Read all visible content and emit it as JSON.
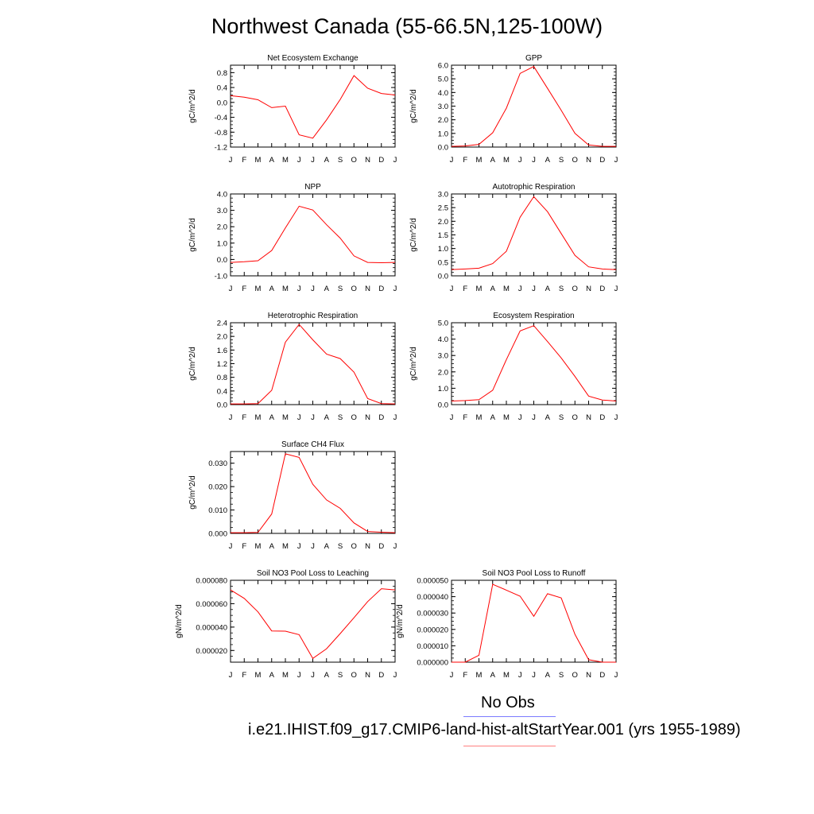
{
  "page": {
    "title": "Northwest Canada (55-66.5N,125-100W)"
  },
  "legend": {
    "obs_label": "No Obs",
    "obs_color": "#7b7bff",
    "model_label": "i.e21.IHIST.f09_g17.CMIP6-land-hist-altStartYear.001 (yrs 1955-1989)",
    "model_color": "#ff8080"
  },
  "colors": {
    "series": "#ff0000",
    "axis": "#000000"
  },
  "months": [
    "J",
    "F",
    "M",
    "A",
    "M",
    "J",
    "J",
    "A",
    "S",
    "O",
    "N",
    "D",
    "J"
  ],
  "chart_data": [
    {
      "type": "line",
      "title": "Net Ecosystem Exchange",
      "ylabel": "gC/m^2/d",
      "ylim": [
        -1.2,
        1.0
      ],
      "yticks": [
        "0.8",
        "0.4",
        "0.0",
        "-0.4",
        "-0.8",
        "-1.2"
      ],
      "ytick_values": [
        0.8,
        0.4,
        0.0,
        -0.4,
        -0.8,
        -1.2
      ],
      "values": [
        0.18,
        0.14,
        0.07,
        -0.14,
        -0.1,
        -0.87,
        -0.96,
        -0.47,
        0.08,
        0.72,
        0.38,
        0.24,
        0.2
      ]
    },
    {
      "type": "line",
      "title": "GPP",
      "ylabel": "gC/m^2/d",
      "ylim": [
        0.0,
        6.0
      ],
      "yticks": [
        "6.0",
        "5.0",
        "4.0",
        "3.0",
        "2.0",
        "1.0",
        "0.0"
      ],
      "ytick_values": [
        6,
        5,
        4,
        3,
        2,
        1,
        0
      ],
      "values": [
        0.05,
        0.08,
        0.2,
        1.05,
        2.85,
        5.4,
        5.9,
        4.3,
        2.7,
        1.0,
        0.15,
        0.05,
        0.05
      ]
    },
    {
      "type": "line",
      "title": "NPP",
      "ylabel": "gC/m^2/d",
      "ylim": [
        -1.0,
        4.0
      ],
      "yticks": [
        "4.0",
        "3.0",
        "2.0",
        "1.0",
        "0.0",
        "-1.0"
      ],
      "ytick_values": [
        4,
        3,
        2,
        1,
        0,
        -1
      ],
      "values": [
        -0.18,
        -0.14,
        -0.08,
        0.55,
        1.92,
        3.25,
        3.02,
        2.12,
        1.3,
        0.22,
        -0.18,
        -0.2,
        -0.18
      ]
    },
    {
      "type": "line",
      "title": "Autotrophic Respiration",
      "ylabel": "gC/m^2/d",
      "ylim": [
        0.0,
        3.0
      ],
      "yticks": [
        "3.0",
        "2.5",
        "2.0",
        "1.5",
        "1.0",
        "0.5",
        "0.0"
      ],
      "ytick_values": [
        3,
        2.5,
        2,
        1.5,
        1,
        0.5,
        0
      ],
      "values": [
        0.23,
        0.25,
        0.28,
        0.45,
        0.9,
        2.15,
        2.9,
        2.35,
        1.55,
        0.75,
        0.33,
        0.25,
        0.23
      ]
    },
    {
      "type": "line",
      "title": "Heterotrophic Respiration",
      "ylabel": "gC/m^2/d",
      "ylim": [
        0.0,
        2.4
      ],
      "yticks": [
        "2.4",
        "2.0",
        "1.6",
        "1.2",
        "0.8",
        "0.4",
        "0.0"
      ],
      "ytick_values": [
        2.4,
        2.0,
        1.6,
        1.2,
        0.8,
        0.4,
        0.0
      ],
      "values": [
        0.02,
        0.02,
        0.03,
        0.42,
        1.83,
        2.35,
        1.9,
        1.48,
        1.35,
        0.95,
        0.18,
        0.03,
        0.02
      ]
    },
    {
      "type": "line",
      "title": "Ecosystem Respiration",
      "ylabel": "gC/m^2/d",
      "ylim": [
        0.0,
        5.0
      ],
      "yticks": [
        "5.0",
        "4.0",
        "3.0",
        "2.0",
        "1.0",
        "0.0"
      ],
      "ytick_values": [
        5,
        4,
        3,
        2,
        1,
        0
      ],
      "values": [
        0.22,
        0.25,
        0.3,
        0.88,
        2.75,
        4.5,
        4.82,
        3.85,
        2.85,
        1.72,
        0.52,
        0.28,
        0.22
      ]
    },
    {
      "type": "line",
      "title": "Surface CH4 Flux",
      "ylabel": "gC/m^2/d",
      "ylim": [
        0.0,
        0.035
      ],
      "yticks": [
        "0.030",
        "0.020",
        "0.010",
        "0.000"
      ],
      "ytick_values": [
        0.03,
        0.02,
        0.01,
        0.0
      ],
      "values": [
        0.0003,
        0.0003,
        0.0004,
        0.0083,
        0.034,
        0.0325,
        0.021,
        0.0143,
        0.0107,
        0.0045,
        0.0008,
        0.0005,
        0.0003
      ]
    },
    {
      "type": "line",
      "title": "Soil NO3 Pool Loss to Leaching",
      "ylabel": "gN/m^2/d",
      "ylim": [
        1e-05,
        8e-05
      ],
      "yticks": [
        "0.000080",
        "0.000060",
        "0.000040",
        "0.000020"
      ],
      "ytick_values": [
        8e-05,
        6e-05,
        4e-05,
        2e-05
      ],
      "values": [
        7.18e-05,
        6.45e-05,
        5.3e-05,
        3.67e-05,
        3.65e-05,
        3.35e-05,
        1.32e-05,
        2.15e-05,
        3.45e-05,
        4.8e-05,
        6.18e-05,
        7.28e-05,
        7.18e-05
      ]
    },
    {
      "type": "line",
      "title": "Soil NO3 Pool Loss to Runoff",
      "ylabel": "gN/m^2/d",
      "ylim": [
        0.0,
        5e-05
      ],
      "yticks": [
        "0.000050",
        "0.000040",
        "0.000030",
        "0.000020",
        "0.000010",
        "0.000000"
      ],
      "ytick_values": [
        5e-05,
        4e-05,
        3e-05,
        2e-05,
        1e-05,
        0.0
      ],
      "values": [
        0.0,
        0.0,
        4.2e-06,
        4.75e-05,
        4.4e-05,
        4.03e-05,
        2.8e-05,
        4.18e-05,
        3.92e-05,
        1.7e-05,
        1.5e-06,
        0.0,
        0.0
      ]
    }
  ]
}
